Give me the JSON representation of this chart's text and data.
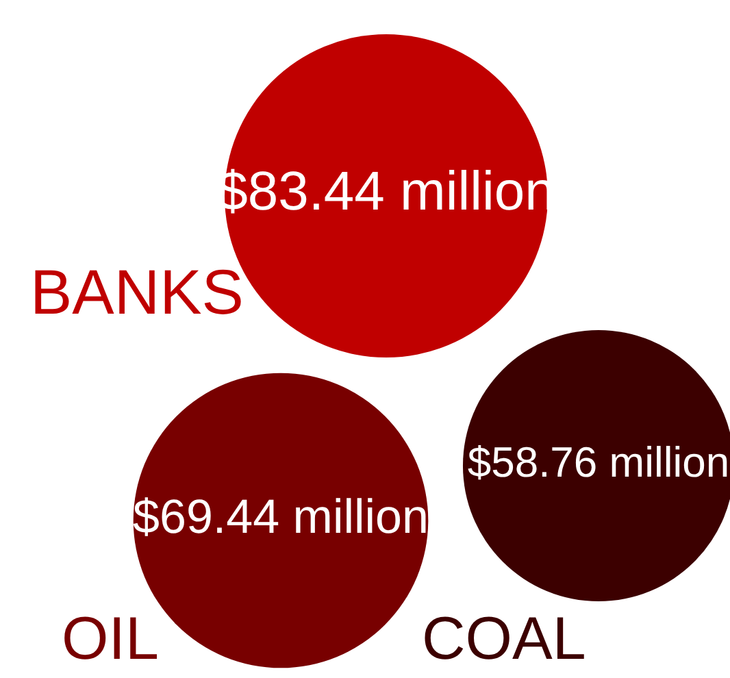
{
  "chart_data": {
    "type": "other",
    "categories": [
      "BANKS",
      "OIL",
      "COAL"
    ],
    "values": [
      83.44,
      69.44,
      58.76
    ],
    "value_labels": [
      "$83.44 million",
      "$69.44 million",
      "$58.76 million"
    ],
    "colors": [
      "#c00000",
      "#780000",
      "#3c0000"
    ]
  }
}
